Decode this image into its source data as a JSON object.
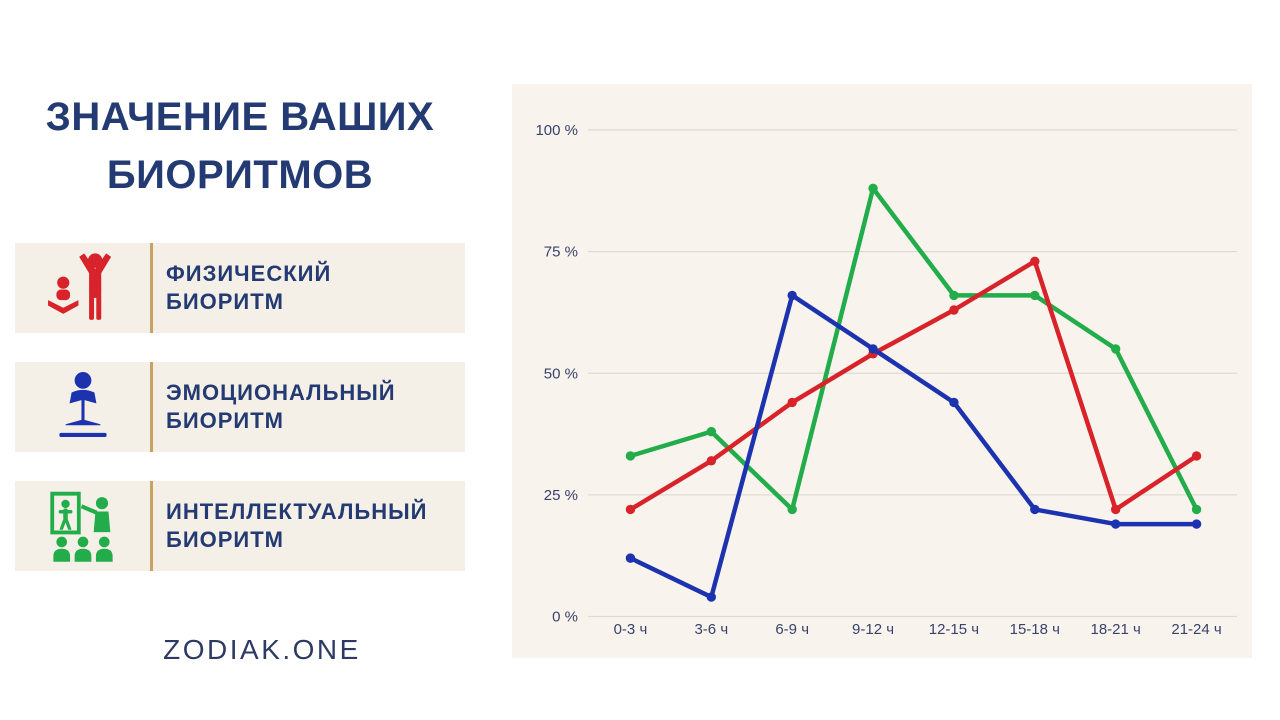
{
  "left_panel": {
    "title": {
      "line1": "ЗНАЧЕНИЕ ВАШИХ",
      "line2": "БИОРИТМОВ",
      "color": "#233a72"
    },
    "divider_color": "#c8a263",
    "legend": [
      {
        "slug": "physical",
        "icon": "physical-exercise-icon",
        "color": "#d8232a",
        "line1": "ФИЗИЧЕСКИЙ",
        "line2": "БИОРИТМ"
      },
      {
        "slug": "emotional",
        "icon": "person-reading-book-icon",
        "color": "#1c32ae",
        "line1": "ЭМОЦИОНАЛЬНЫЙ",
        "line2": "БИОРИТМ"
      },
      {
        "slug": "intellectual",
        "icon": "presentation-audience-icon",
        "color": "#22ac4a",
        "line1": "ИНТЕЛЛЕКТУАЛЬНЫЙ",
        "line2": "БИОРИТМ"
      }
    ],
    "footer": {
      "text": "ZODIAK.ONE",
      "color": "#2e3a63"
    }
  },
  "chart_data": {
    "type": "line",
    "title": "",
    "xlabel": "",
    "ylabel": "",
    "categories": [
      "0-3 ч",
      "3-6 ч",
      "6-9 ч",
      "9-12 ч",
      "12-15 ч",
      "15-18 ч",
      "18-21 ч",
      "21-24 ч"
    ],
    "series": [
      {
        "slug": "physical",
        "name": "ФИЗИЧЕСКИЙ БИОРИТМ",
        "color": "#d8232a",
        "values": [
          22,
          32,
          44,
          54,
          63,
          73,
          22,
          33
        ]
      },
      {
        "slug": "emotional",
        "name": "ЭМОЦИОНАЛЬНЫЙ БИОРИТМ",
        "color": "#1c32ae",
        "values": [
          12,
          4,
          66,
          55,
          44,
          22,
          19,
          19
        ]
      },
      {
        "slug": "intellectual",
        "name": "ИНТЕЛЛЕКТУАЛЬНЫЙ БИОРИТМ",
        "color": "#22ac4a",
        "values": [
          33,
          38,
          22,
          88,
          66,
          66,
          55,
          22
        ]
      }
    ],
    "ylabel_ticks": [
      "0 %",
      "25 %",
      "50 %",
      "75 %",
      "100 %"
    ],
    "ylim": [
      0,
      100
    ],
    "grid": true,
    "legend_position": "left-panel",
    "panel_background": "#f8f4ed"
  }
}
